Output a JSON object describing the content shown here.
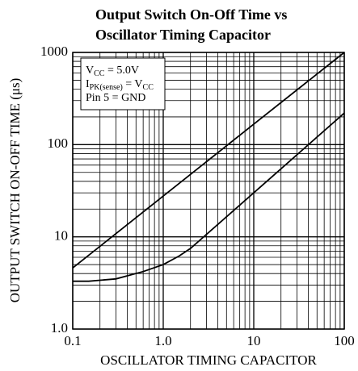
{
  "chart_data": {
    "type": "line",
    "title": [
      "Output Switch On-Off Time vs",
      "Oscillator Timing Capacitor"
    ],
    "xlabel": "OSCILLATOR TIMING CAPACITOR",
    "ylabel": "OUTPUT SWITCH ON-OFF TIME (μs)",
    "annotations": [
      [
        "V",
        "CC",
        " = 5.0V"
      ],
      [
        "I",
        "PK(sense)",
        " = V",
        "CC"
      ],
      [
        "Pin 5 = GND"
      ]
    ],
    "series": [
      {
        "color": "#000000",
        "x": [
          0.1,
          1,
          10,
          100
        ],
        "values": [
          4.6,
          27.7,
          167,
          1000
        ]
      },
      {
        "color": "#000000",
        "x": [
          0.1,
          0.15,
          0.3,
          0.6,
          1,
          1.5,
          2,
          10,
          100
        ],
        "values": [
          3.3,
          3.3,
          3.5,
          4.2,
          5,
          6.2,
          7.5,
          30,
          220
        ]
      }
    ],
    "xlim": [
      0.1,
      100
    ],
    "ylim": [
      1,
      1000
    ],
    "xticks": [
      0.1,
      {
        "value": 1,
        "label": "1.0"
      },
      10,
      100
    ],
    "yticks": [
      {
        "value": 1,
        "label": "1.0"
      },
      10,
      100,
      1000
    ],
    "xscale": "log",
    "yscale": "log",
    "grid": true,
    "minor_grid": true
  }
}
